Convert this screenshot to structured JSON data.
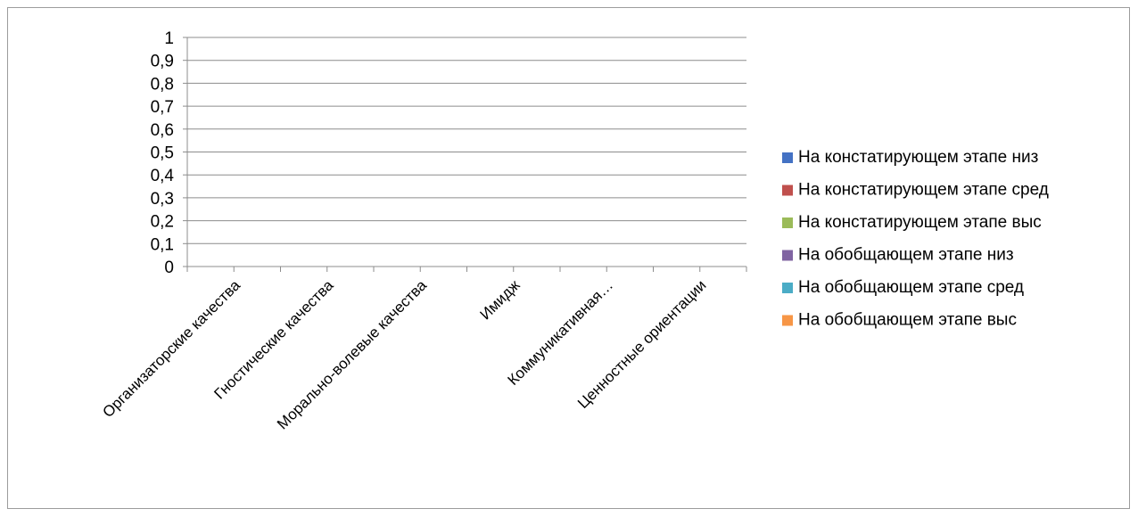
{
  "chart_data": {
    "type": "bar",
    "categories": [
      "Организаторские качества",
      "Гностические качества",
      "Морально-волевые качества",
      "Имидж",
      "Коммуникативная…",
      "Ценностные ориентации"
    ],
    "series": [
      {
        "name": "На констатирующем этапе низ",
        "color": "#4472c4",
        "values": [
          0,
          0,
          0,
          0,
          0,
          0
        ]
      },
      {
        "name": "На констатирующем этапе сред",
        "color": "#c0504d",
        "values": [
          0,
          0,
          0,
          0,
          0,
          0
        ]
      },
      {
        "name": "На констатирующем этапе выс",
        "color": "#9bbb59",
        "values": [
          0,
          0,
          0,
          0,
          0,
          0
        ]
      },
      {
        "name": "На обобщающем этапе низ",
        "color": "#8064a2",
        "values": [
          0,
          0,
          0,
          0,
          0,
          0
        ]
      },
      {
        "name": "На обобщающем этапе сред",
        "color": "#4bacc6",
        "values": [
          0,
          0,
          0,
          0,
          0,
          0
        ]
      },
      {
        "name": "На обобщающем этапе выс",
        "color": "#f79646",
        "values": [
          0,
          0,
          0,
          0,
          0,
          0
        ]
      }
    ],
    "y_ticks": [
      "0",
      "0,1",
      "0,2",
      "0,3",
      "0,4",
      "0,5",
      "0,6",
      "0,7",
      "0,8",
      "0,9",
      "1"
    ],
    "ylim": [
      0,
      1
    ],
    "grid": true,
    "legend_position": "right"
  }
}
